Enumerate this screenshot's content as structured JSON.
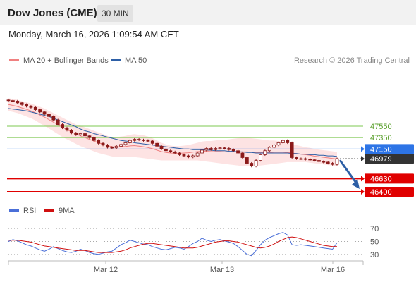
{
  "header": {
    "title": "Dow Jones (CME)",
    "timeframe": "30 MIN"
  },
  "datetime": "Monday, March 16, 2026 1:09:54 AM CET",
  "legend": {
    "ma20_label": "MA 20 + Bollinger Bands",
    "ma50_label": "MA 50",
    "credit": "Research © 2026 Trading Central",
    "rsi_label": "RSI",
    "rsi_ma_label": "9MA"
  },
  "colors": {
    "ma20": "#f08080",
    "bollinger_fill": "#fde0e0",
    "ma50": "#2d5fa6",
    "candle": "#8b1a1a",
    "resistance": "#7ec850",
    "pivot": "#2d74e6",
    "support": "#e00000",
    "last_price": "#333333",
    "arrow": "#2d5fa6",
    "rsi": "#4a6fd8",
    "rsi_ma": "#d01010"
  },
  "chart_data": [
    {
      "type": "line",
      "name": "price",
      "x_ticks": [
        "Mar 12",
        "Mar 13",
        "Mar 16"
      ],
      "levels": [
        {
          "value": 47550,
          "label": "47550",
          "kind": "resistance"
        },
        {
          "value": 47350,
          "label": "47350",
          "kind": "resistance"
        },
        {
          "value": 47150,
          "label": "47150",
          "kind": "pivot"
        },
        {
          "value": 46979,
          "label": "46979",
          "kind": "last"
        },
        {
          "value": 46630,
          "label": "46630",
          "kind": "support"
        },
        {
          "value": 46400,
          "label": "46400",
          "kind": "support"
        }
      ],
      "close": [
        48000,
        47990,
        47960,
        47930,
        47900,
        47880,
        47840,
        47800,
        47760,
        47720,
        47660,
        47580,
        47520,
        47480,
        47430,
        47400,
        47420,
        47380,
        47350,
        47300,
        47250,
        47220,
        47180,
        47170,
        47200,
        47230,
        47260,
        47300,
        47320,
        47310,
        47300,
        47290,
        47250,
        47200,
        47150,
        47120,
        47100,
        47080,
        47050,
        47030,
        47010,
        47030,
        47080,
        47130,
        47160,
        47140,
        47160,
        47170,
        47160,
        47140,
        47120,
        47080,
        47000,
        46900,
        46850,
        46950,
        47050,
        47120,
        47180,
        47220,
        47260,
        47300,
        47260,
        47000,
        46980,
        46980,
        46970,
        46960,
        46950,
        46930,
        46920,
        46900,
        46880,
        46979
      ],
      "ma50": [
        47860,
        47850,
        47840,
        47830,
        47820,
        47800,
        47780,
        47760,
        47740,
        47720,
        47690,
        47660,
        47630,
        47600,
        47570,
        47540,
        47500,
        47470,
        47450,
        47420,
        47400,
        47380,
        47360,
        47340,
        47320,
        47300,
        47290,
        47280,
        47260,
        47250,
        47240,
        47230,
        47220,
        47210,
        47200,
        47190,
        47180,
        47170,
        47160,
        47150,
        47150,
        47140,
        47140,
        47140,
        47130,
        47130,
        47120,
        47120,
        47120,
        47110,
        47110,
        47100,
        47100,
        47090,
        47090,
        47080,
        47080,
        47080,
        47080,
        47080,
        47080,
        47080,
        47080,
        47070,
        47070,
        47060,
        47060,
        47050,
        47050,
        47040,
        47040,
        47030,
        47030,
        47020
      ],
      "bollinger_upper": [
        48040,
        48030,
        48010,
        47990,
        47970,
        47950,
        47920,
        47890,
        47860,
        47820,
        47780,
        47740,
        47700,
        47660,
        47620,
        47580,
        47560,
        47530,
        47500,
        47470,
        47440,
        47410,
        47380,
        47360,
        47360,
        47370,
        47380,
        47400,
        47410,
        47400,
        47390,
        47370,
        47340,
        47300,
        47260,
        47230,
        47210,
        47200,
        47200,
        47210,
        47220,
        47240,
        47260,
        47280,
        47290,
        47290,
        47300,
        47310,
        47310,
        47320,
        47330,
        47340,
        47350,
        47350,
        47340,
        47330,
        47320,
        47310,
        47300,
        47300,
        47290,
        47280,
        47260,
        47240,
        47220,
        47200,
        47180,
        47170,
        47150,
        47140,
        47130,
        47120,
        47110,
        47100
      ],
      "bollinger_lower": [
        47820,
        47800,
        47780,
        47750,
        47720,
        47690,
        47650,
        47600,
        47560,
        47510,
        47460,
        47410,
        47360,
        47320,
        47280,
        47240,
        47200,
        47170,
        47140,
        47110,
        47080,
        47060,
        47040,
        47020,
        47010,
        47010,
        47010,
        47010,
        47010,
        47000,
        46990,
        46980,
        46970,
        46960,
        46950,
        46950,
        46950,
        46950,
        46950,
        46950,
        46950,
        46950,
        46950,
        46940,
        46930,
        46920,
        46910,
        46900,
        46890,
        46880,
        46870,
        46860,
        46850,
        46850,
        46850,
        46850,
        46860,
        46870,
        46880,
        46890,
        46900,
        46910,
        46920,
        46920,
        46920,
        46920,
        46920,
        46910,
        46900,
        46890,
        46880,
        46870,
        46860,
        46850
      ]
    },
    {
      "type": "line",
      "name": "rsi_panel",
      "y_ticks": [
        70,
        50,
        30
      ],
      "ylim": [
        20,
        80
      ],
      "rsi": [
        50,
        53,
        51,
        48,
        45,
        43,
        40,
        37,
        35,
        38,
        42,
        39,
        36,
        34,
        33,
        35,
        38,
        36,
        33,
        31,
        30,
        32,
        34,
        35,
        40,
        45,
        48,
        52,
        50,
        48,
        46,
        45,
        42,
        40,
        38,
        37,
        39,
        41,
        40,
        38,
        42,
        47,
        50,
        55,
        52,
        50,
        52,
        53,
        51,
        49,
        47,
        42,
        36,
        30,
        28,
        36,
        45,
        52,
        56,
        59,
        62,
        64,
        60,
        45,
        44,
        45,
        44,
        43,
        42,
        41,
        40,
        39,
        38,
        48
      ],
      "rsi_ma": [
        52,
        52,
        52,
        51,
        50,
        49,
        47,
        45,
        43,
        42,
        41,
        40,
        39,
        38,
        37,
        36,
        36,
        36,
        35,
        34,
        33,
        33,
        33,
        33,
        34,
        35,
        37,
        40,
        42,
        44,
        46,
        47,
        47,
        46,
        45,
        44,
        43,
        42,
        41,
        40,
        40,
        40,
        41,
        43,
        45,
        47,
        49,
        50,
        51,
        51,
        50,
        49,
        47,
        45,
        43,
        41,
        40,
        41,
        43,
        46,
        50,
        53,
        56,
        57,
        56,
        54,
        52,
        50,
        48,
        46,
        44,
        43,
        42,
        42
      ]
    }
  ]
}
